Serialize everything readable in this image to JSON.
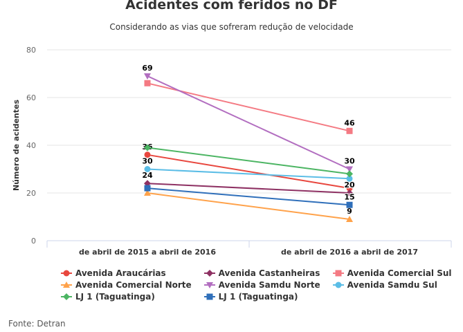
{
  "chart_data": {
    "type": "line",
    "title": "Acidentes com feridos no DF",
    "subtitle": "Considerando as vias que sofreram redução de velocidade",
    "ylabel": "Número de acidentes",
    "xlabel": "",
    "ylim": [
      0,
      80
    ],
    "yticks": [
      "0",
      "20",
      "40",
      "60",
      "80"
    ],
    "categories": [
      "de abril de 2015 a abril de 2016",
      "de abril de 2016 a abril de 2017"
    ],
    "series": [
      {
        "name": "Avenida Araucárias",
        "color": "#e8473e",
        "marker": "circle",
        "values": [
          36,
          22
        ],
        "labels": [
          "36",
          null
        ]
      },
      {
        "name": "Avenida Castanheiras",
        "color": "#8e3163",
        "marker": "diamond",
        "values": [
          24,
          20
        ],
        "labels": [
          "24",
          "20"
        ]
      },
      {
        "name": "Avenida Comercial Sul",
        "color": "#f47a83",
        "marker": "square",
        "values": [
          66,
          46
        ],
        "labels": [
          null,
          "46"
        ]
      },
      {
        "name": "Avenida Comercial Norte",
        "color": "#ffa24a",
        "marker": "triangle",
        "values": [
          20,
          9
        ],
        "labels": [
          null,
          "9"
        ]
      },
      {
        "name": "Avenida Samdu Norte",
        "color": "#b26ec0",
        "marker": "triangle-down",
        "values": [
          69,
          30
        ],
        "labels": [
          "69",
          "30"
        ]
      },
      {
        "name": "Avenida Samdu Sul",
        "color": "#5bbde6",
        "marker": "circle",
        "values": [
          30,
          26
        ],
        "labels": [
          "30",
          null
        ]
      },
      {
        "name": "LJ 1 (Taguatinga)",
        "color": "#4cb563",
        "marker": "diamond",
        "values": [
          39,
          28
        ],
        "labels": [
          null,
          null
        ]
      },
      {
        "name": "LJ 1 (Taguatinga)",
        "color": "#2f6fba",
        "marker": "square",
        "values": [
          22,
          15
        ],
        "labels": [
          null,
          "15"
        ]
      }
    ],
    "grid": true,
    "legend": "bottom"
  },
  "source": "Fonte: Detran"
}
